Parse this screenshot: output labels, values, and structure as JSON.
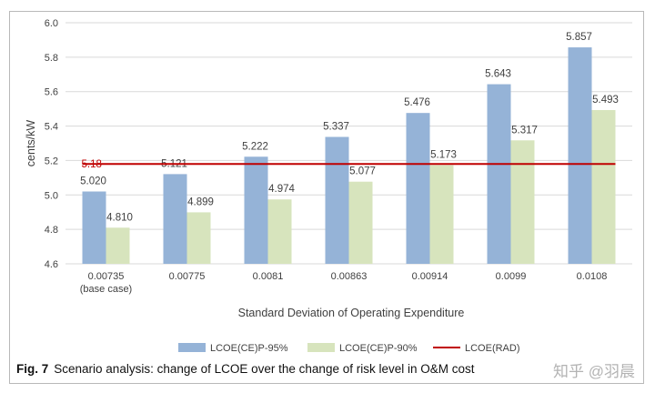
{
  "chart_data": {
    "type": "bar",
    "title": "",
    "xlabel": "Standard Deviation of Operating Expenditure",
    "ylabel": "cents/kW",
    "ylim": [
      4.6,
      6.0
    ],
    "yticks": [
      "4.6",
      "4.8",
      "5.0",
      "5.2",
      "5.4",
      "5.6",
      "5.8",
      "6.0"
    ],
    "grid": true,
    "legend_position": "bottom",
    "categories": [
      [
        "0.00735",
        "(base case)"
      ],
      [
        "0.00775"
      ],
      [
        "0.0081"
      ],
      [
        "0.00863"
      ],
      [
        "0.00914"
      ],
      [
        "0.0099"
      ],
      [
        "0.0108"
      ]
    ],
    "series": [
      {
        "name": "LCOE(CE)P-95%",
        "color": "#95b3d7",
        "values": [
          5.02,
          5.121,
          5.222,
          5.337,
          5.476,
          5.643,
          5.857
        ],
        "labels": [
          "5.020",
          "5.121",
          "5.222",
          "5.337",
          "5.476",
          "5.643",
          "5.857"
        ]
      },
      {
        "name": "LCOE(CE)P-90%",
        "color": "#d7e4bd",
        "values": [
          4.81,
          4.899,
          4.974,
          5.077,
          5.173,
          5.317,
          5.493
        ],
        "labels": [
          "4.810",
          "4.899",
          "4.974",
          "5.077",
          "5.173",
          "5.317",
          "5.493"
        ]
      }
    ],
    "reference_line": {
      "name": "LCOE(RAD)",
      "value": 5.18,
      "label": "5.18",
      "color": "#c00000"
    }
  },
  "caption": {
    "label": "Fig. 7",
    "text": "Scenario analysis: change of LCOE over the change of risk level in O&M cost"
  },
  "watermark": "知乎 @羽晨"
}
